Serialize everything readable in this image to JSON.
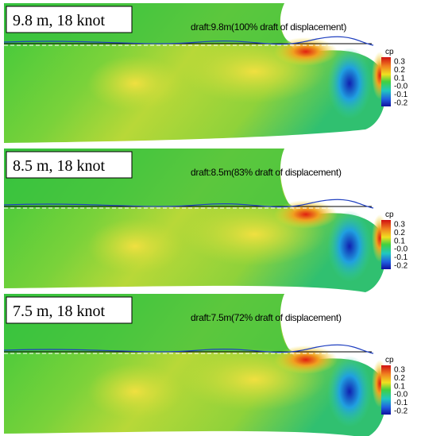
{
  "panels": [
    {
      "label": "9.8 m, 18 knot",
      "draft": "draft:9.8m(100% draft of displacement)",
      "colorbar": {
        "title": "cp",
        "ticks": [
          "0.3",
          "0.2",
          "0.1",
          "-0.0",
          "-0.1",
          "-0.2"
        ]
      }
    },
    {
      "label": "8.5 m, 18 knot",
      "draft": "draft:8.5m(83% draft of displacement)",
      "colorbar": {
        "title": "cp",
        "ticks": [
          "0.3",
          "0.2",
          "0.1",
          "-0.0",
          "-0.1",
          "-0.2"
        ]
      }
    },
    {
      "label": "7.5 m, 18 knot",
      "draft": "draft:7.5m(72% draft of displacement)",
      "colorbar": {
        "title": "cp",
        "ticks": [
          "0.3",
          "0.2",
          "0.1",
          "-0.0",
          "-0.1",
          "-0.2"
        ]
      }
    }
  ]
}
